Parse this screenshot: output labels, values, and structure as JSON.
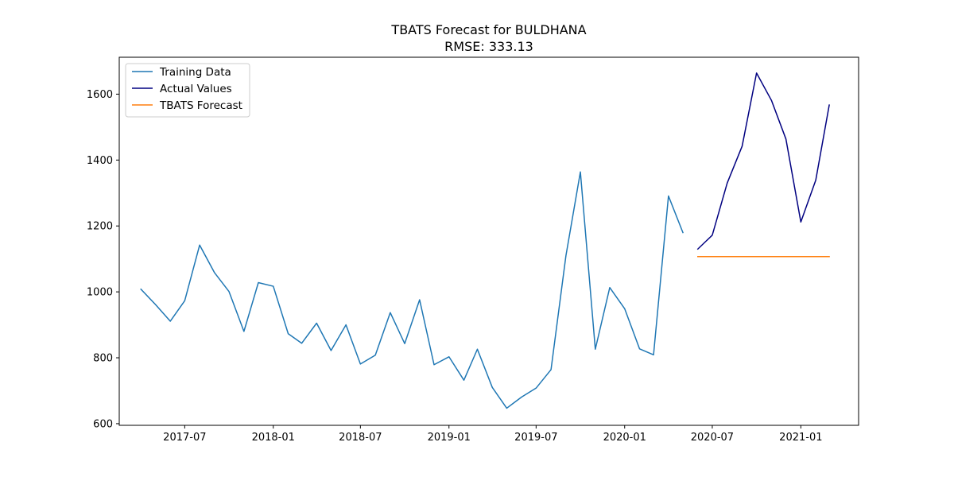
{
  "chart_data": {
    "type": "line",
    "title": "TBATS Forecast for BULDHANA",
    "subtitle": "RMSE: 333.13",
    "xlabel": "",
    "ylabel": "",
    "x_range": [
      "2017-02-15",
      "2021-05-01"
    ],
    "ylim": [
      595,
      1712
    ],
    "grid": false,
    "legend_position": "top-left",
    "x_ticks": [
      {
        "date": "2017-07-01",
        "label": "2017-07"
      },
      {
        "date": "2018-01-01",
        "label": "2018-01"
      },
      {
        "date": "2018-07-01",
        "label": "2018-07"
      },
      {
        "date": "2019-01-01",
        "label": "2019-01"
      },
      {
        "date": "2019-07-01",
        "label": "2019-07"
      },
      {
        "date": "2020-01-01",
        "label": "2020-01"
      },
      {
        "date": "2020-07-01",
        "label": "2020-07"
      },
      {
        "date": "2021-01-01",
        "label": "2021-01"
      }
    ],
    "y_ticks": [
      600,
      800,
      1000,
      1200,
      1400,
      1600
    ],
    "series": [
      {
        "name": "Training Data",
        "color": "#1f77b4",
        "points": [
          {
            "x": "2017-04-01",
            "y": 1008
          },
          {
            "x": "2017-05-01",
            "y": 962
          },
          {
            "x": "2017-06-01",
            "y": 911
          },
          {
            "x": "2017-07-01",
            "y": 973
          },
          {
            "x": "2017-08-01",
            "y": 1142
          },
          {
            "x": "2017-09-01",
            "y": 1058
          },
          {
            "x": "2017-10-01",
            "y": 1001
          },
          {
            "x": "2017-11-01",
            "y": 880
          },
          {
            "x": "2017-12-01",
            "y": 1028
          },
          {
            "x": "2018-01-01",
            "y": 1017
          },
          {
            "x": "2018-02-01",
            "y": 873
          },
          {
            "x": "2018-03-01",
            "y": 844
          },
          {
            "x": "2018-04-01",
            "y": 905
          },
          {
            "x": "2018-05-01",
            "y": 822
          },
          {
            "x": "2018-06-01",
            "y": 900
          },
          {
            "x": "2018-07-01",
            "y": 781
          },
          {
            "x": "2018-08-01",
            "y": 808
          },
          {
            "x": "2018-09-01",
            "y": 937
          },
          {
            "x": "2018-10-01",
            "y": 843
          },
          {
            "x": "2018-11-01",
            "y": 976
          },
          {
            "x": "2018-12-01",
            "y": 779
          },
          {
            "x": "2019-01-01",
            "y": 803
          },
          {
            "x": "2019-02-01",
            "y": 732
          },
          {
            "x": "2019-03-01",
            "y": 826
          },
          {
            "x": "2019-04-01",
            "y": 710
          },
          {
            "x": "2019-05-01",
            "y": 647
          },
          {
            "x": "2019-06-01",
            "y": 681
          },
          {
            "x": "2019-07-01",
            "y": 708
          },
          {
            "x": "2019-08-01",
            "y": 764
          },
          {
            "x": "2019-09-01",
            "y": 1110
          },
          {
            "x": "2019-10-01",
            "y": 1364
          },
          {
            "x": "2019-11-01",
            "y": 826
          },
          {
            "x": "2019-12-01",
            "y": 1013
          },
          {
            "x": "2020-01-01",
            "y": 949
          },
          {
            "x": "2020-02-01",
            "y": 827
          },
          {
            "x": "2020-03-01",
            "y": 809
          },
          {
            "x": "2020-04-01",
            "y": 1291
          },
          {
            "x": "2020-05-01",
            "y": 1180
          }
        ]
      },
      {
        "name": "Actual Values",
        "color": "#000080",
        "points": [
          {
            "x": "2020-06-01",
            "y": 1130
          },
          {
            "x": "2020-07-01",
            "y": 1172
          },
          {
            "x": "2020-08-01",
            "y": 1330
          },
          {
            "x": "2020-09-01",
            "y": 1442
          },
          {
            "x": "2020-10-01",
            "y": 1664
          },
          {
            "x": "2020-11-01",
            "y": 1581
          },
          {
            "x": "2020-12-01",
            "y": 1464
          },
          {
            "x": "2021-01-01",
            "y": 1212
          },
          {
            "x": "2021-02-01",
            "y": 1339
          },
          {
            "x": "2021-03-01",
            "y": 1567
          }
        ]
      },
      {
        "name": "TBATS Forecast",
        "color": "#ff7f0e",
        "points": [
          {
            "x": "2020-06-01",
            "y": 1107
          },
          {
            "x": "2020-07-01",
            "y": 1107
          },
          {
            "x": "2020-08-01",
            "y": 1107
          },
          {
            "x": "2020-09-01",
            "y": 1107
          },
          {
            "x": "2020-10-01",
            "y": 1107
          },
          {
            "x": "2020-11-01",
            "y": 1107
          },
          {
            "x": "2020-12-01",
            "y": 1107
          },
          {
            "x": "2021-01-01",
            "y": 1107
          },
          {
            "x": "2021-02-01",
            "y": 1107
          },
          {
            "x": "2021-03-01",
            "y": 1107
          }
        ]
      }
    ]
  }
}
